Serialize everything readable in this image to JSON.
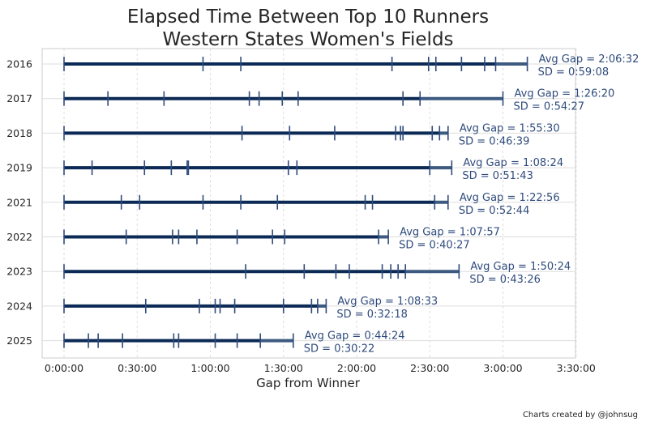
{
  "chart_data": {
    "type": "scatter",
    "title_lines": [
      "Elapsed Time Between Top 10 Runners",
      "Western States Women's Fields"
    ],
    "xlabel": "Gap from Winner",
    "ylabel": "",
    "x_ticks": [
      "0:00:00",
      "0:30:00",
      "1:00:00",
      "1:30:00",
      "2:00:00",
      "2:30:00",
      "3:00:00",
      "3:30:00"
    ],
    "xlim_minutes": [
      -9,
      210
    ],
    "grid": true,
    "colors": {
      "line": "#0b2a55",
      "tick": "#2f4b7c",
      "annotation": "#2f4b7c",
      "grid": "#dddddd",
      "frame": "#cccccc"
    },
    "series": [
      {
        "year": "2016",
        "gaps_minutes": [
          0,
          57,
          72.5,
          134.5,
          149.5,
          152.5,
          163,
          172.5,
          177,
          190
        ],
        "avg_label": "Avg Gap = 2:06:32",
        "sd_label": "SD = 0:59:08"
      },
      {
        "year": "2017",
        "gaps_minutes": [
          0,
          18,
          41,
          76,
          80,
          89.5,
          96,
          139,
          146,
          180
        ],
        "avg_label": "Avg Gap = 1:26:20",
        "sd_label": "SD = 0:54:27"
      },
      {
        "year": "2018",
        "gaps_minutes": [
          0,
          73,
          92.5,
          111,
          136,
          138,
          139,
          151,
          154,
          157.5
        ],
        "avg_label": "Avg Gap = 1:55:30",
        "sd_label": "SD = 0:46:39"
      },
      {
        "year": "2019",
        "gaps_minutes": [
          0,
          11.5,
          33,
          44,
          50.5,
          51,
          92,
          95.5,
          150,
          159
        ],
        "avg_label": "Avg Gap = 1:08:24",
        "sd_label": "SD = 0:51:43"
      },
      {
        "year": "2021",
        "gaps_minutes": [
          0,
          23.5,
          31,
          57,
          72.5,
          87.5,
          123.5,
          126.5,
          152,
          157.5
        ],
        "avg_label": "Avg Gap = 1:22:56",
        "sd_label": "SD = 0:52:44"
      },
      {
        "year": "2022",
        "gaps_minutes": [
          0,
          25.5,
          44.5,
          47,
          54.5,
          71,
          85.5,
          90.5,
          129,
          133
        ],
        "avg_label": "Avg Gap = 1:07:57",
        "sd_label": "SD = 0:40:27"
      },
      {
        "year": "2023",
        "gaps_minutes": [
          0,
          74.5,
          98.5,
          111.5,
          117,
          130.5,
          134,
          137,
          140,
          162
        ],
        "avg_label": "Avg Gap = 1:50:24",
        "sd_label": "SD = 0:43:26"
      },
      {
        "year": "2024",
        "gaps_minutes": [
          0,
          33.5,
          55.5,
          62,
          64,
          70,
          90,
          101.5,
          104,
          107.5
        ],
        "avg_label": "Avg Gap = 1:08:33",
        "sd_label": "SD = 0:32:18"
      },
      {
        "year": "2025",
        "gaps_minutes": [
          0,
          10,
          14,
          24,
          45,
          47,
          62,
          71,
          80.5,
          94
        ],
        "avg_label": "Avg Gap = 0:44:24",
        "sd_label": "SD = 0:30:22"
      }
    ]
  },
  "footer": {
    "credit": "Charts created by @johnsug"
  }
}
